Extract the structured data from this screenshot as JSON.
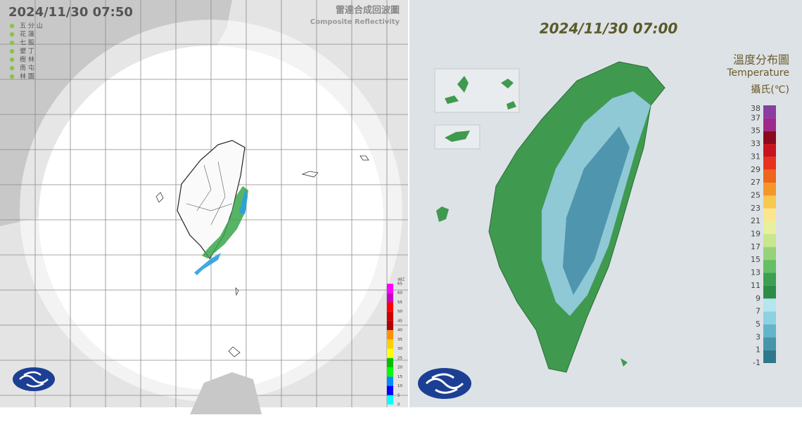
{
  "radar": {
    "timestamp": "2024/11/30  07:50",
    "title": "雷達合成回波圖",
    "subtitle": "Composite Reflectivity",
    "stations": [
      "五 分 山",
      "花 蓮",
      "七 股",
      "墾 丁",
      "樹 林",
      "南 屯",
      "林 園"
    ],
    "scale": {
      "unit": "dBZ",
      "ticks": [
        65,
        60,
        55,
        50,
        45,
        40,
        35,
        30,
        25,
        20,
        15,
        10,
        5,
        0
      ]
    }
  },
  "temperature": {
    "timestamp": "2024/11/30 07:00",
    "title": "溫度分布圖",
    "subtitle": "Temperature",
    "unit": "攝氏(℃)",
    "scale": {
      "ticks": [
        38,
        37,
        35,
        33,
        31,
        29,
        27,
        25,
        23,
        21,
        19,
        17,
        15,
        13,
        11,
        9,
        7,
        5,
        3,
        1,
        -1
      ]
    }
  }
}
